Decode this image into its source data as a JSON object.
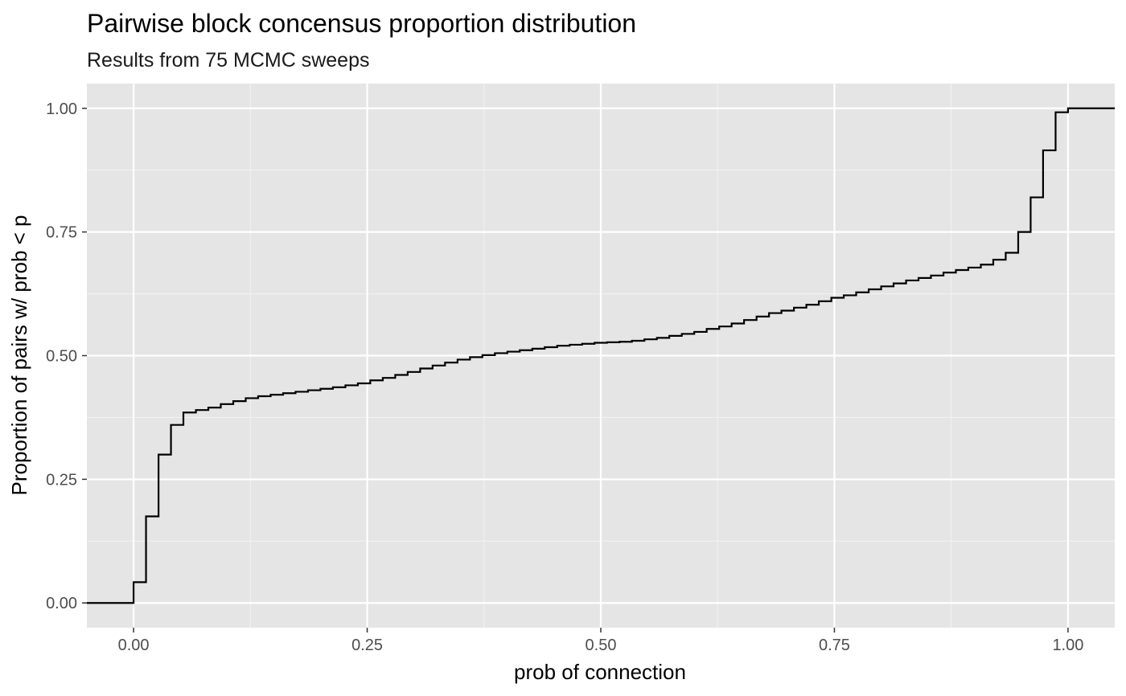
{
  "chart_data": {
    "type": "line",
    "step": true,
    "title": "Pairwise block concensus proportion distribution",
    "subtitle": "Results from 75 MCMC sweeps",
    "xlabel": "prob of connection",
    "ylabel": "Proportion of pairs w/ prob < p",
    "xlim": [
      -0.05,
      1.05
    ],
    "ylim": [
      -0.05,
      1.05
    ],
    "x_ticks": [
      0.0,
      0.25,
      0.5,
      0.75,
      1.0
    ],
    "x_tick_labels": [
      "0.00",
      "0.25",
      "0.50",
      "0.75",
      "1.00"
    ],
    "y_ticks": [
      0.0,
      0.25,
      0.5,
      0.75,
      1.0
    ],
    "y_tick_labels": [
      "0.00",
      "0.25",
      "0.50",
      "0.75",
      "1.00"
    ],
    "grid": true,
    "series": [
      {
        "x": [
          -0.05,
          0.0,
          0.0133,
          0.0267,
          0.04,
          0.0533,
          0.0667,
          0.08,
          0.0933,
          0.1067,
          0.12,
          0.1333,
          0.1467,
          0.16,
          0.1733,
          0.1867,
          0.2,
          0.2133,
          0.2267,
          0.24,
          0.2533,
          0.2667,
          0.28,
          0.2933,
          0.3067,
          0.32,
          0.3333,
          0.3467,
          0.36,
          0.3733,
          0.3867,
          0.4,
          0.4133,
          0.4267,
          0.44,
          0.4533,
          0.4667,
          0.48,
          0.4933,
          0.5067,
          0.52,
          0.5333,
          0.5467,
          0.56,
          0.5733,
          0.5867,
          0.6,
          0.6133,
          0.6267,
          0.64,
          0.6533,
          0.6667,
          0.68,
          0.6933,
          0.7067,
          0.72,
          0.7333,
          0.7467,
          0.76,
          0.7733,
          0.7867,
          0.8,
          0.8133,
          0.8267,
          0.84,
          0.8533,
          0.8667,
          0.88,
          0.8933,
          0.9067,
          0.92,
          0.9333,
          0.9467,
          0.96,
          0.9733,
          0.9867,
          1.0,
          1.05
        ],
        "y": [
          0.0,
          0.042,
          0.175,
          0.3,
          0.36,
          0.385,
          0.39,
          0.395,
          0.402,
          0.408,
          0.414,
          0.418,
          0.421,
          0.424,
          0.427,
          0.43,
          0.433,
          0.436,
          0.44,
          0.444,
          0.45,
          0.455,
          0.461,
          0.467,
          0.474,
          0.48,
          0.486,
          0.492,
          0.497,
          0.501,
          0.505,
          0.508,
          0.511,
          0.514,
          0.517,
          0.52,
          0.522,
          0.524,
          0.526,
          0.527,
          0.528,
          0.53,
          0.533,
          0.536,
          0.54,
          0.544,
          0.548,
          0.554,
          0.559,
          0.565,
          0.572,
          0.579,
          0.586,
          0.591,
          0.597,
          0.603,
          0.61,
          0.617,
          0.622,
          0.628,
          0.634,
          0.64,
          0.646,
          0.652,
          0.657,
          0.662,
          0.668,
          0.673,
          0.678,
          0.684,
          0.694,
          0.708,
          0.75,
          0.82,
          0.915,
          0.992,
          1.0,
          1.0
        ]
      }
    ]
  }
}
